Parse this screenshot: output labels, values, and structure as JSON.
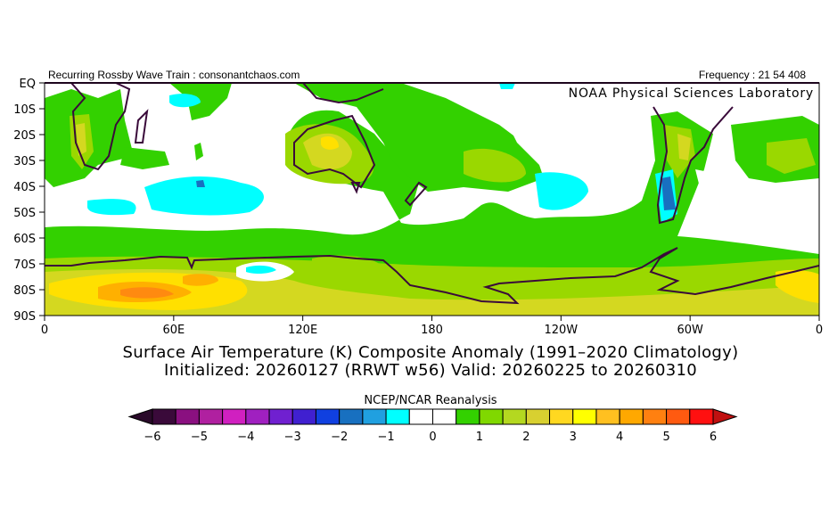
{
  "header": {
    "left": "Recurring Rossby Wave Train : consonantchaos.com",
    "right": "Frequency : 21 54 408",
    "lab": "NOAA Physical Sciences Laboratory"
  },
  "map": {
    "lat_labels": [
      "EQ",
      "10S",
      "20S",
      "30S",
      "40S",
      "50S",
      "60S",
      "70S",
      "80S",
      "90S"
    ],
    "lon_labels": [
      "0",
      "60E",
      "120E",
      "180",
      "120W",
      "60W",
      "0"
    ],
    "title_line1": "Surface Air Temperature (K) Composite Anomaly (1991–2020 Climatology)",
    "title_line2": "Initialized: 20260127 (RRWT w56) Valid: 20260225 to 20260310",
    "coast_color": "#3a0a3a"
  },
  "colorbar": {
    "title": "NCEP/NCAR Reanalysis",
    "tick_labels": [
      "-6",
      "-5",
      "-4",
      "-3",
      "-2",
      "-1",
      "0",
      "1",
      "2",
      "3",
      "4",
      "5",
      "6"
    ],
    "under_color": "#2a0a2a",
    "over_color": "#c01010",
    "colors": [
      "#3a0a3a",
      "#8a1080",
      "#b020a0",
      "#d020c0",
      "#a020c0",
      "#7020d0",
      "#4020d0",
      "#1040e0",
      "#1870c0",
      "#20a0e0",
      "#00ffff",
      "#ffffff",
      "#ffffff",
      "#33d100",
      "#80d800",
      "#b4d820",
      "#d8d030",
      "#ffd820",
      "#ffff00",
      "#ffc020",
      "#ffa800",
      "#ff8010",
      "#ff5a10",
      "#ff1010"
    ]
  }
}
